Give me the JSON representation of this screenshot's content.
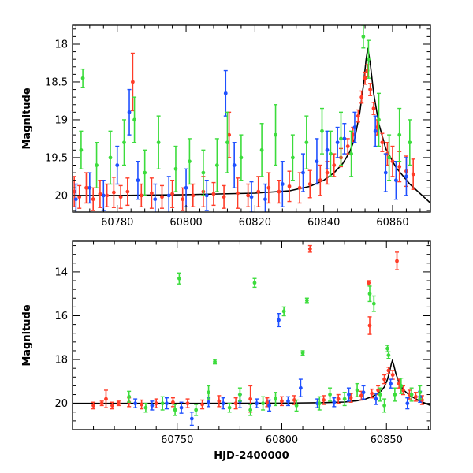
{
  "chart_data": [
    {
      "type": "scatter",
      "panel": "top",
      "ylabel": "Magnitude",
      "xlabel": "",
      "xlim": [
        60767,
        60871
      ],
      "ylim": [
        20.22,
        17.75
      ],
      "y_inverted": true,
      "xticks": [
        60780,
        60800,
        60820,
        60840,
        60860
      ],
      "yticks": [
        18,
        18.5,
        19,
        19.5,
        20
      ],
      "ytick_labels": [
        "18",
        "18.5",
        "19",
        "19.5",
        "20"
      ],
      "series": [
        {
          "color": "#ff3c28",
          "x": [
            60767.5,
            60769,
            60771,
            60773,
            60775,
            60777,
            60779,
            60781,
            60783,
            60784.5,
            60787,
            60790,
            60793,
            60796,
            60799,
            60802,
            60805,
            60808,
            60811,
            60812.5,
            60815,
            60818,
            60821,
            60824,
            60827,
            60830,
            60833,
            60836,
            60839,
            60841,
            60843,
            60845,
            60847,
            60848.5,
            60850,
            60851,
            60852,
            60852.7,
            60853.5,
            60854.5,
            60855.5,
            60857,
            60858.5,
            60860,
            60862,
            60864,
            60866
          ],
          "y": [
            19.95,
            20.02,
            19.9,
            20.05,
            19.98,
            20.0,
            19.96,
            20.02,
            19.95,
            18.5,
            20.0,
            19.97,
            20.02,
            19.98,
            20.05,
            20.0,
            19.95,
            19.98,
            20.02,
            19.2,
            19.97,
            20.0,
            19.95,
            19.9,
            19.95,
            19.88,
            19.9,
            19.85,
            19.8,
            19.7,
            19.6,
            19.5,
            19.35,
            19.2,
            18.95,
            18.7,
            18.45,
            18.35,
            18.6,
            18.85,
            19.1,
            19.3,
            19.45,
            19.55,
            19.62,
            19.68,
            19.72
          ],
          "err": [
            0.2,
            0.15,
            0.2,
            0.15,
            0.18,
            0.15,
            0.2,
            0.15,
            0.18,
            0.38,
            0.15,
            0.2,
            0.15,
            0.18,
            0.15,
            0.15,
            0.2,
            0.15,
            0.15,
            0.3,
            0.2,
            0.15,
            0.2,
            0.2,
            0.15,
            0.2,
            0.2,
            0.18,
            0.2,
            0.15,
            0.15,
            0.12,
            0.1,
            0.1,
            0.08,
            0.08,
            0.08,
            0.08,
            0.08,
            0.08,
            0.1,
            0.12,
            0.15,
            0.2,
            0.2,
            0.2,
            0.2
          ]
        },
        {
          "color": "#1e50ff",
          "x": [
            60768,
            60772,
            60776,
            60780,
            60783.5,
            60786,
            60791,
            60795,
            60800,
            60806,
            60811.5,
            60814,
            60819,
            60823,
            60828,
            60834,
            60838,
            60841,
            60844,
            60846,
            60849,
            60855,
            60858,
            60861,
            60864
          ],
          "y": [
            20.05,
            19.9,
            20.0,
            19.6,
            18.9,
            19.8,
            20.05,
            20.0,
            19.9,
            20.0,
            18.65,
            19.6,
            20.02,
            20.05,
            19.85,
            19.7,
            19.55,
            19.4,
            19.3,
            19.25,
            19.1,
            19.15,
            19.7,
            19.8,
            19.75
          ],
          "err": [
            0.2,
            0.2,
            0.2,
            0.25,
            0.3,
            0.25,
            0.2,
            0.25,
            0.25,
            0.2,
            0.3,
            0.3,
            0.2,
            0.2,
            0.3,
            0.25,
            0.3,
            0.25,
            0.2,
            0.2,
            0.2,
            0.2,
            0.25,
            0.25,
            0.25
          ]
        },
        {
          "color": "#3cdc3c",
          "x": [
            60769.5,
            60770,
            60774,
            60778,
            60782,
            60785,
            60788,
            60792,
            60797,
            60801,
            60805,
            60809,
            60812,
            60816,
            60822,
            60826,
            60831,
            60835,
            60839.5,
            60842,
            60845,
            60848,
            60851.5,
            60853,
            60856,
            60859,
            60862,
            60865
          ],
          "y": [
            19.4,
            18.45,
            19.6,
            19.5,
            19.3,
            19.0,
            19.7,
            19.3,
            19.65,
            19.55,
            19.7,
            19.6,
            19.3,
            19.5,
            19.4,
            19.2,
            19.5,
            19.3,
            19.15,
            19.45,
            19.25,
            19.45,
            17.9,
            18.2,
            19.0,
            19.5,
            19.2,
            19.3
          ],
          "err": [
            0.25,
            0.12,
            0.3,
            0.35,
            0.3,
            0.3,
            0.3,
            0.35,
            0.3,
            0.3,
            0.3,
            0.35,
            0.4,
            0.3,
            0.35,
            0.4,
            0.3,
            0.35,
            0.3,
            0.3,
            0.35,
            0.3,
            0.15,
            0.25,
            0.35,
            0.3,
            0.35,
            0.3
          ]
        }
      ],
      "model_curve": {
        "color": "#000000",
        "x": [
          60767,
          60780,
          60800,
          60820,
          60830,
          60836,
          60840,
          60843,
          60845.5,
          60847.5,
          60849,
          60850.5,
          60851.5,
          60852.3,
          60852.8,
          60853.5,
          60854.5,
          60856,
          60858,
          60861,
          60865,
          60871
        ],
        "y": [
          20.0,
          20.0,
          19.99,
          19.97,
          19.94,
          19.88,
          19.8,
          19.7,
          19.58,
          19.43,
          19.25,
          18.9,
          18.55,
          18.2,
          18.05,
          18.25,
          18.65,
          19.05,
          19.38,
          19.63,
          19.85,
          20.1
        ]
      }
    },
    {
      "type": "scatter",
      "panel": "bottom",
      "ylabel": "Magnitude",
      "xlabel": "HJD-2400000",
      "xlim": [
        60700,
        60871
      ],
      "ylim": [
        21.2,
        12.6
      ],
      "y_inverted": true,
      "xticks": [
        60750,
        60800,
        60850
      ],
      "yticks": [
        14,
        16,
        18,
        20
      ],
      "ytick_labels": [
        "14",
        "16",
        "18",
        "20"
      ],
      "series": [
        {
          "color": "#ff3c28",
          "x": [
            60710,
            60714,
            60716,
            60719,
            60722,
            60727,
            60733,
            60740,
            60748,
            60755,
            60762,
            60770,
            60778,
            60785,
            60793,
            60800,
            60806,
            60813.5,
            60820,
            60827,
            60833,
            60838,
            60841.5,
            60842,
            60843,
            60846,
            60849,
            60851,
            60853,
            60855,
            60856,
            60858,
            60861,
            60864,
            60867
          ],
          "y": [
            20.1,
            20.0,
            19.8,
            20.1,
            20.0,
            19.95,
            20.05,
            20.0,
            19.95,
            20.0,
            20.05,
            19.9,
            20.0,
            19.8,
            19.95,
            19.9,
            19.85,
            12.95,
            19.85,
            19.8,
            19.75,
            19.65,
            14.5,
            16.45,
            19.55,
            19.4,
            18.9,
            18.5,
            18.7,
            13.5,
            19.1,
            19.4,
            19.6,
            19.7,
            19.85
          ],
          "err": [
            0.15,
            0.1,
            0.4,
            0.15,
            0.1,
            0.2,
            0.2,
            0.2,
            0.2,
            0.2,
            0.2,
            0.25,
            0.25,
            0.6,
            0.2,
            0.2,
            0.2,
            0.15,
            0.2,
            0.2,
            0.2,
            0.2,
            0.1,
            0.4,
            0.2,
            0.2,
            0.2,
            0.15,
            0.2,
            0.4,
            0.2,
            0.2,
            0.2,
            0.2,
            0.2
          ]
        },
        {
          "color": "#1e50ff",
          "x": [
            60730,
            60738,
            60745,
            60752,
            60757,
            60765,
            60772,
            60780,
            60788,
            60794,
            60798.5,
            60803,
            60809,
            60817,
            60825,
            60832,
            60839,
            60845,
            60852,
            60860,
            60866
          ],
          "y": [
            20.0,
            20.1,
            20.0,
            20.2,
            20.7,
            19.95,
            20.0,
            19.9,
            20.0,
            20.1,
            16.2,
            19.9,
            19.3,
            20.0,
            19.95,
            19.6,
            19.5,
            19.8,
            19.1,
            20.0,
            19.7
          ],
          "err": [
            0.2,
            0.2,
            0.25,
            0.25,
            0.3,
            0.2,
            0.25,
            0.3,
            0.2,
            0.25,
            0.3,
            0.2,
            0.4,
            0.2,
            0.2,
            0.3,
            0.3,
            0.25,
            0.2,
            0.25,
            0.25
          ]
        },
        {
          "color": "#3cdc3c",
          "x": [
            60727,
            60735,
            60743,
            60749,
            60751,
            60759,
            60765,
            60768,
            60775,
            60780,
            60785,
            60787,
            60791,
            60797,
            60801,
            60807,
            60810,
            60812,
            60818,
            60823,
            60830,
            60836,
            60842,
            60844,
            60847,
            60849,
            60850.5,
            60851,
            60854,
            60857,
            60862,
            60866
          ],
          "y": [
            19.7,
            20.2,
            20.0,
            20.3,
            14.3,
            20.3,
            19.5,
            18.1,
            20.2,
            19.6,
            20.3,
            14.5,
            20.0,
            19.8,
            15.8,
            20.1,
            17.7,
            15.3,
            20.0,
            19.6,
            19.8,
            19.4,
            15.0,
            15.45,
            19.6,
            20.1,
            17.5,
            17.8,
            19.6,
            19.2,
            19.6,
            19.5
          ],
          "err": [
            0.25,
            0.2,
            0.3,
            0.25,
            0.25,
            0.25,
            0.3,
            0.1,
            0.2,
            0.3,
            0.25,
            0.2,
            0.3,
            0.3,
            0.2,
            0.25,
            0.1,
            0.1,
            0.3,
            0.3,
            0.3,
            0.3,
            0.35,
            0.35,
            0.3,
            0.3,
            0.15,
            0.15,
            0.3,
            0.35,
            0.3,
            0.3
          ]
        }
      ],
      "model_curve": {
        "color": "#000000",
        "x": [
          60700,
          60760,
          60800,
          60820,
          60830,
          60836,
          60840,
          60843,
          60845.5,
          60847.5,
          60849,
          60850.5,
          60851.5,
          60852.3,
          60852.8,
          60853.5,
          60854.5,
          60856,
          60858,
          60861,
          60865,
          60871
        ],
        "y": [
          20.0,
          20.0,
          19.99,
          19.97,
          19.94,
          19.88,
          19.8,
          19.7,
          19.58,
          19.43,
          19.25,
          18.9,
          18.55,
          18.2,
          18.05,
          18.25,
          18.65,
          19.05,
          19.38,
          19.63,
          19.85,
          20.1
        ]
      }
    }
  ]
}
